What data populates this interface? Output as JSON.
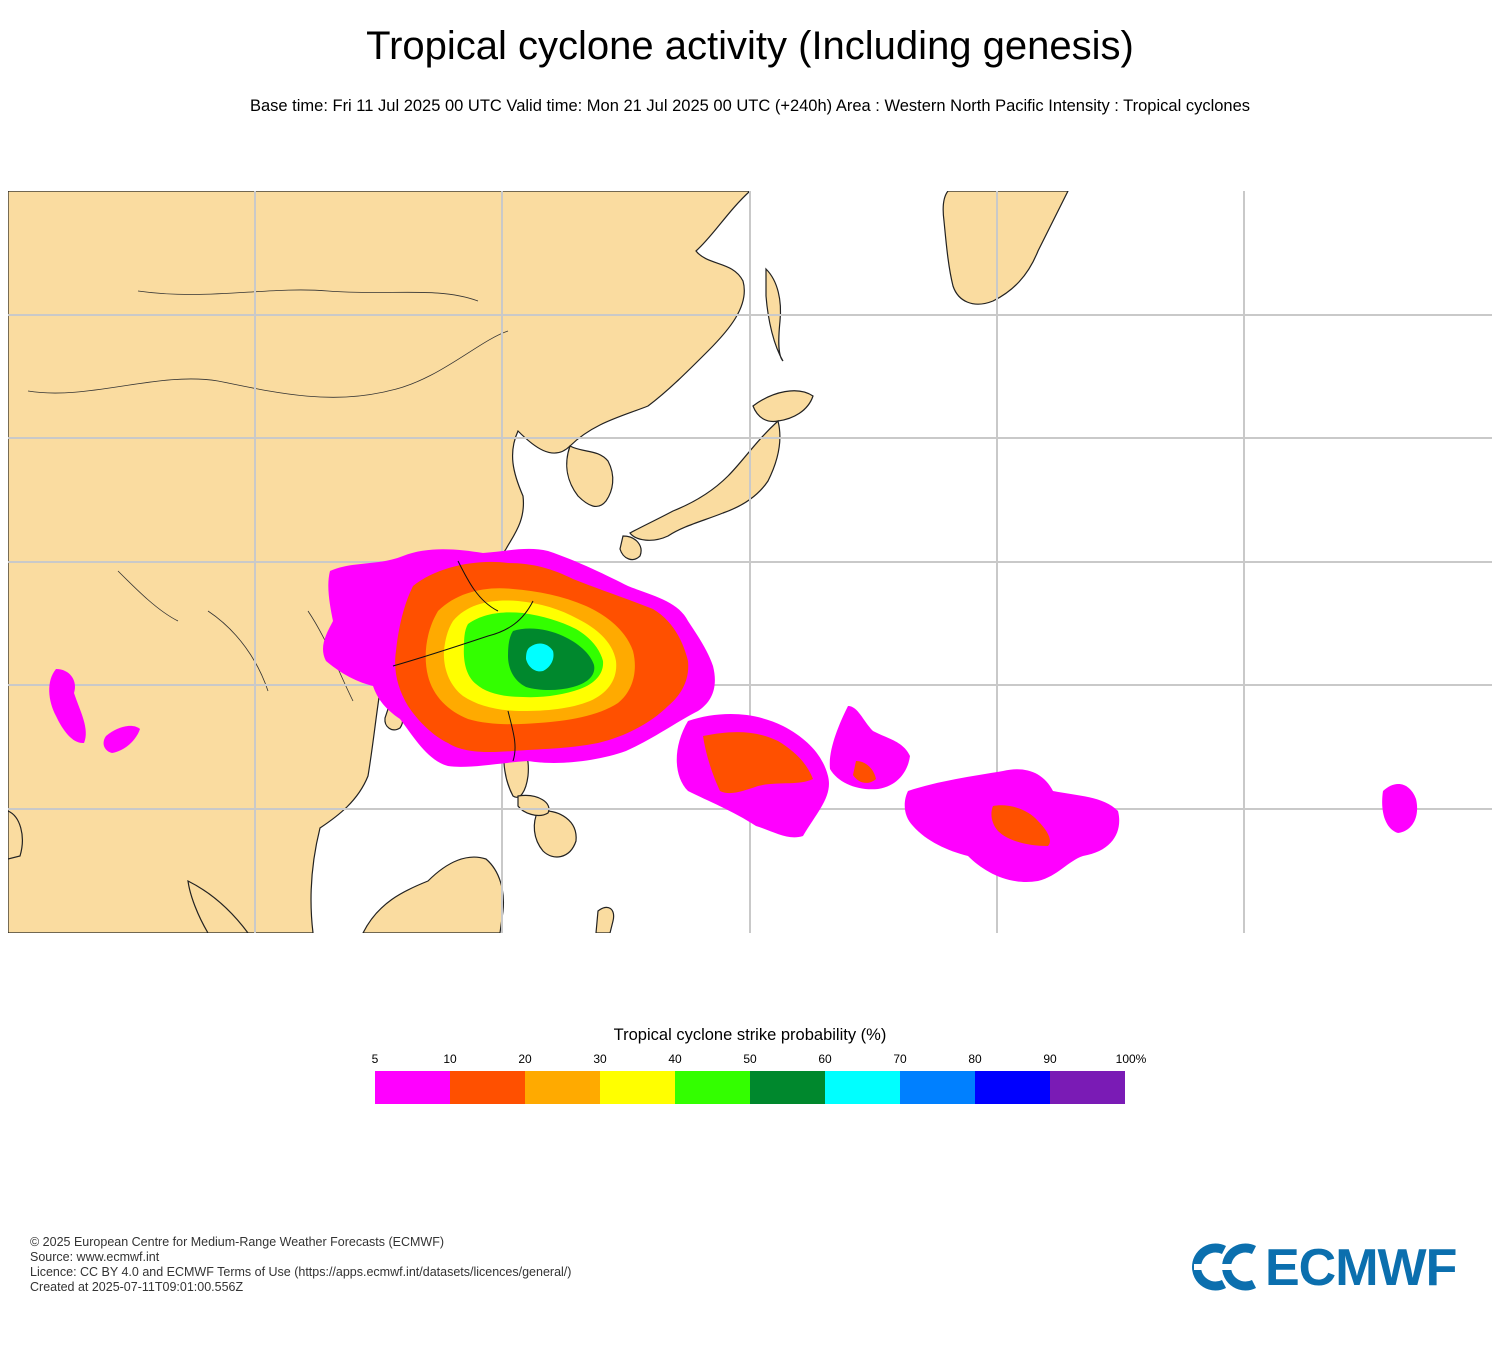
{
  "header": {
    "title": "Tropical cyclone activity (Including genesis)",
    "subtitle": "Base time: Fri 11 Jul 2025 00 UTC Valid time: Mon 21 Jul 2025 00 UTC (+240h) Area : Western North Pacific Intensity : Tropical cyclones"
  },
  "legend": {
    "title": "Tropical cyclone strike probability (%)",
    "ticks": [
      "5",
      "10",
      "20",
      "30",
      "40",
      "50",
      "60",
      "70",
      "80",
      "90",
      "100%"
    ],
    "colors": [
      "#ff00ff",
      "#ff5000",
      "#ffaa00",
      "#ffff00",
      "#33ff00",
      "#00882d",
      "#00ffff",
      "#0080ff",
      "#0000ff",
      "#7a1bb5"
    ]
  },
  "map": {
    "land_color": "#fadca0",
    "ocean_color": "#ffffff",
    "grid_color": "#c9c9c9"
  },
  "footer": {
    "copyright": "© 2025 European Centre for Medium-Range Weather Forecasts (ECMWF)",
    "source": "Source: www.ecmwf.int",
    "licence": "Licence: CC BY 4.0 and ECMWF Terms of Use (https://apps.ecmwf.int/datasets/licences/general/)",
    "created": "Created at 2025-07-11T09:01:00.556Z"
  },
  "logo": {
    "text": "ECMWF",
    "color": "#0b6fae"
  }
}
